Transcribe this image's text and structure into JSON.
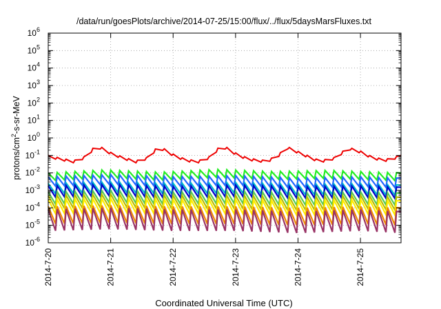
{
  "chart_data": {
    "type": "line",
    "title": "/data/run/goesPlots/archive/2014-07-25/15:00/flux/../flux/5daysMarsFluxes.txt",
    "xlabel": "Coordinated Universal Time (UTC)",
    "ylabel": "protons/cm²-s-sr-MeV",
    "ylabel_parts": {
      "pre": "protons/cm",
      "sup": "2",
      "post": "-s-sr-MeV"
    },
    "yscale": "log",
    "ylim_exp": [
      -6,
      6
    ],
    "y_ticks": [
      {
        "base": "10",
        "exp": "6"
      },
      {
        "base": "10",
        "exp": "5"
      },
      {
        "base": "10",
        "exp": "4"
      },
      {
        "base": "10",
        "exp": "3"
      },
      {
        "base": "10",
        "exp": "2"
      },
      {
        "base": "10",
        "exp": "1"
      },
      {
        "base": "10",
        "exp": "0"
      },
      {
        "base": "10",
        "exp": "-1"
      },
      {
        "base": "10",
        "exp": "-2"
      },
      {
        "base": "10",
        "exp": "-3"
      },
      {
        "base": "10",
        "exp": "-4"
      },
      {
        "base": "10",
        "exp": "-5"
      },
      {
        "base": "10",
        "exp": "-6"
      }
    ],
    "xlim_days": [
      0,
      5.65
    ],
    "x_ticks": [
      {
        "label": "2014-7-20",
        "day": 0
      },
      {
        "label": "2014-7-21",
        "day": 1
      },
      {
        "label": "2014-7-22",
        "day": 2
      },
      {
        "label": "2014-7-23",
        "day": 3
      },
      {
        "label": "2014-7-24",
        "day": 4
      },
      {
        "label": "2014-7-25",
        "day": 5
      }
    ],
    "grid": true,
    "sawtooth_period_days": 0.143,
    "series": [
      {
        "color": "#ee0000",
        "values": [
          [
            0,
            0.1
          ],
          [
            0.2,
            0.07
          ],
          [
            0.4,
            0.05
          ],
          [
            0.6,
            0.09
          ],
          [
            0.75,
            0.35
          ],
          [
            0.85,
            0.3
          ],
          [
            1.0,
            0.15
          ],
          [
            1.2,
            0.08
          ],
          [
            1.4,
            0.05
          ],
          [
            1.6,
            0.08
          ],
          [
            1.75,
            0.32
          ],
          [
            1.85,
            0.25
          ],
          [
            2.0,
            0.12
          ],
          [
            2.2,
            0.06
          ],
          [
            2.4,
            0.05
          ],
          [
            2.6,
            0.09
          ],
          [
            2.75,
            0.35
          ],
          [
            2.85,
            0.3
          ],
          [
            3.0,
            0.14
          ],
          [
            3.2,
            0.07
          ],
          [
            3.5,
            0.05
          ],
          [
            3.7,
            0.12
          ],
          [
            3.8,
            0.35
          ],
          [
            3.9,
            0.25
          ],
          [
            4.1,
            0.12
          ],
          [
            4.35,
            0.05
          ],
          [
            4.6,
            0.08
          ],
          [
            4.8,
            0.3
          ],
          [
            5.0,
            0.18
          ],
          [
            5.2,
            0.08
          ],
          [
            5.4,
            0.06
          ],
          [
            5.65,
            0.1
          ]
        ],
        "min_factor": 0.75
      },
      {
        "color": "#22ee22",
        "values": [
          [
            0,
            0.01
          ],
          [
            0.9,
            0.015
          ],
          [
            1.8,
            0.011
          ],
          [
            2.7,
            0.016
          ],
          [
            3.6,
            0.012
          ],
          [
            4.5,
            0.014
          ],
          [
            5.65,
            0.01
          ]
        ],
        "min_factor": 0.35
      },
      {
        "color": "#2266ff",
        "values": [
          [
            0,
            0.006
          ],
          [
            1.0,
            0.008
          ],
          [
            2.0,
            0.006
          ],
          [
            3.0,
            0.007
          ],
          [
            4.0,
            0.005
          ],
          [
            5.0,
            0.006
          ],
          [
            5.65,
            0.005
          ]
        ],
        "min_factor": 0.28
      },
      {
        "color": "#00bbcc",
        "values": [
          [
            0,
            0.0025
          ],
          [
            1.0,
            0.003
          ],
          [
            2.0,
            0.0025
          ],
          [
            3.0,
            0.0028
          ],
          [
            4.0,
            0.0022
          ],
          [
            5.0,
            0.0024
          ],
          [
            5.65,
            0.002
          ]
        ],
        "min_factor": 0.25
      },
      {
        "color": "#0000cc",
        "values": [
          [
            0,
            0.0018
          ],
          [
            1.0,
            0.0022
          ],
          [
            2.0,
            0.0017
          ],
          [
            3.0,
            0.002
          ],
          [
            4.0,
            0.0016
          ],
          [
            5.0,
            0.0018
          ],
          [
            5.65,
            0.0015
          ]
        ],
        "min_factor": 0.22
      },
      {
        "color": "#55cc55",
        "values": [
          [
            0,
            0.0008
          ],
          [
            1.0,
            0.001
          ],
          [
            2.0,
            0.0008
          ],
          [
            3.0,
            0.0009
          ],
          [
            4.0,
            0.0007
          ],
          [
            5.0,
            0.0008
          ],
          [
            5.65,
            0.0007
          ]
        ],
        "min_factor": 0.2
      },
      {
        "color": "#bbbb00",
        "values": [
          [
            0,
            0.0005
          ],
          [
            1.0,
            0.0006
          ],
          [
            2.0,
            0.0005
          ],
          [
            3.0,
            0.0005
          ],
          [
            4.0,
            0.0004
          ],
          [
            5.0,
            0.0005
          ],
          [
            5.65,
            0.0004
          ]
        ],
        "min_factor": 0.18
      },
      {
        "color": "#ffee00",
        "values": [
          [
            0,
            0.0003
          ],
          [
            1.0,
            0.00035
          ],
          [
            2.0,
            0.0003
          ],
          [
            3.0,
            0.0003
          ],
          [
            4.0,
            0.00025
          ],
          [
            5.0,
            0.0003
          ],
          [
            5.65,
            0.00025
          ]
        ],
        "min_factor": 0.15
      },
      {
        "color": "#ee8800",
        "values": [
          [
            0,
            0.00012
          ],
          [
            1.0,
            0.00014
          ],
          [
            2.0,
            0.00012
          ],
          [
            3.0,
            0.00012
          ],
          [
            4.0,
            0.0001
          ],
          [
            5.0,
            0.00012
          ],
          [
            5.65,
            0.0001
          ]
        ],
        "min_factor": 0.1
      },
      {
        "color": "#993366",
        "values": [
          [
            0,
            8e-05
          ],
          [
            1.0,
            0.0001
          ],
          [
            2.0,
            8e-05
          ],
          [
            3.0,
            8e-05
          ],
          [
            4.0,
            6e-05
          ],
          [
            5.0,
            8e-05
          ],
          [
            5.65,
            6e-05
          ]
        ],
        "min_factor": 0.06
      }
    ]
  }
}
